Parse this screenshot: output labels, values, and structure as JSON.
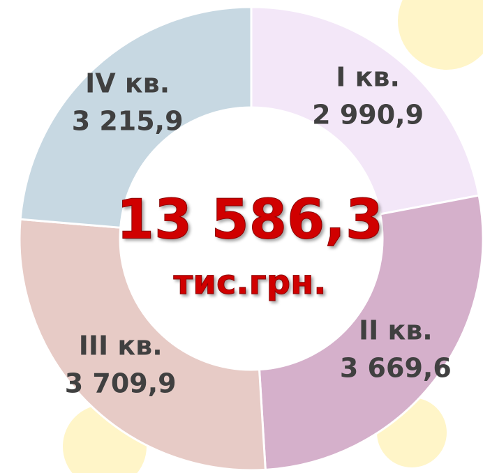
{
  "chart_data": {
    "type": "donut",
    "categories": [
      "I кв.",
      "II кв.",
      "III кв.",
      "IV кв."
    ],
    "values": [
      2990.9,
      3669.6,
      3709.9,
      3215.9
    ],
    "value_labels": [
      "2 990,9",
      "3 669,6",
      "3 709,9",
      "3 215,9"
    ],
    "colors": [
      "#f3e7f8",
      "#d5b0cb",
      "#e7cbc6",
      "#c7d8e2"
    ],
    "center_title": "13 586,3",
    "center_subtitle": "тис.грн."
  }
}
